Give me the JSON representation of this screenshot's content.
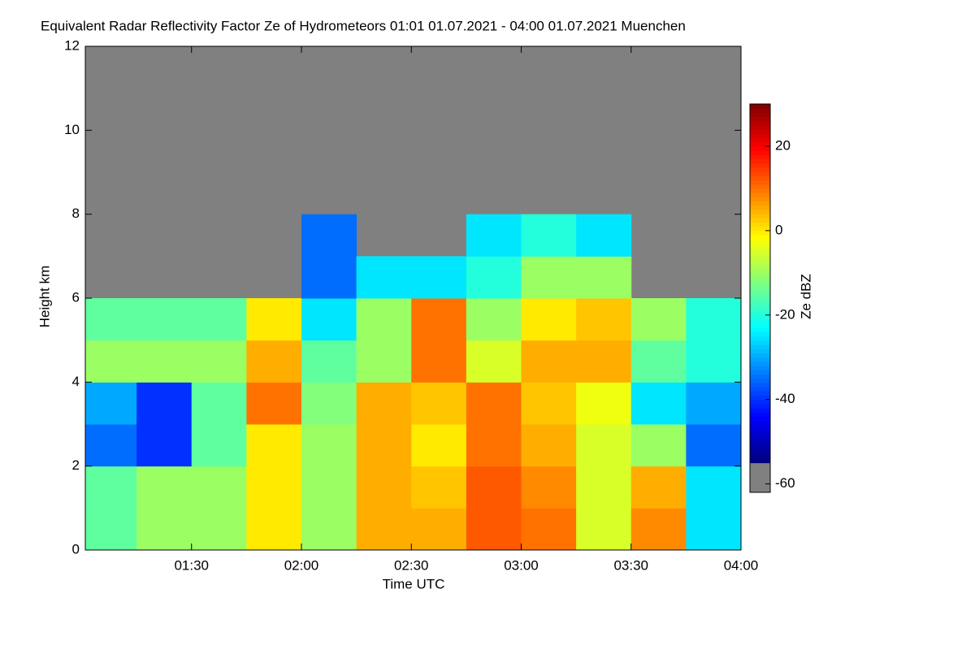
{
  "chart_data": {
    "type": "heatmap",
    "title": "Equivalent Radar Reflectivity Factor Ze of Hydrometeors   01:01 01.07.2021 - 04:00 01.07.2021 Muenchen",
    "x_label": "Time UTC",
    "y_label": "Height km",
    "colorbar_label": "Ze dBZ",
    "colormap": "jet",
    "x_bins": [
      "01:01",
      "01:15",
      "01:30",
      "01:45",
      "02:00",
      "02:15",
      "02:30",
      "02:45",
      "03:00",
      "03:15",
      "03:30",
      "03:45",
      "04:00"
    ],
    "y_bins": [
      0,
      1,
      2,
      3,
      4,
      5,
      6,
      7,
      8,
      9,
      10,
      11,
      12
    ],
    "values": [
      [
        -15,
        -10,
        -10,
        0,
        -10,
        5,
        5,
        12,
        10,
        -5,
        8,
        -25
      ],
      [
        -15,
        -10,
        -10,
        0,
        -10,
        5,
        3,
        12,
        8,
        -5,
        5,
        -25
      ],
      [
        -35,
        -40,
        -15,
        0,
        -10,
        5,
        0,
        10,
        5,
        -5,
        -10,
        -35
      ],
      [
        -30,
        -40,
        -15,
        10,
        -12,
        5,
        3,
        10,
        3,
        -3,
        -25,
        -30
      ],
      [
        -10,
        -10,
        -10,
        5,
        -15,
        -10,
        10,
        -5,
        5,
        5,
        -15,
        -20
      ],
      [
        -15,
        -15,
        -15,
        0,
        -25,
        -10,
        10,
        -10,
        0,
        3,
        -10,
        -20
      ],
      [
        null,
        null,
        null,
        null,
        -35,
        -25,
        -25,
        -20,
        -10,
        -10,
        null,
        null
      ],
      [
        null,
        null,
        null,
        null,
        -35,
        null,
        null,
        -25,
        -20,
        -25,
        null,
        null
      ],
      [
        null,
        null,
        null,
        null,
        null,
        null,
        null,
        null,
        null,
        null,
        null,
        null
      ],
      [
        null,
        null,
        null,
        null,
        null,
        null,
        null,
        null,
        null,
        null,
        null,
        null
      ],
      [
        null,
        null,
        null,
        null,
        null,
        null,
        null,
        null,
        null,
        null,
        null,
        null
      ],
      [
        null,
        null,
        null,
        null,
        null,
        null,
        null,
        null,
        null,
        null,
        null,
        null
      ]
    ],
    "xlim": [
      "01:01",
      "04:00"
    ],
    "xticks": [
      "01:30",
      "02:00",
      "02:30",
      "03:00",
      "03:30",
      "04:00"
    ],
    "ylim": [
      0,
      12
    ],
    "yticks": [
      0,
      2,
      4,
      6,
      8,
      10,
      12
    ],
    "zlim": [
      -62,
      30
    ],
    "zticks": [
      20,
      0,
      -20,
      -40,
      -60
    ],
    "missing_color": "#808080"
  }
}
